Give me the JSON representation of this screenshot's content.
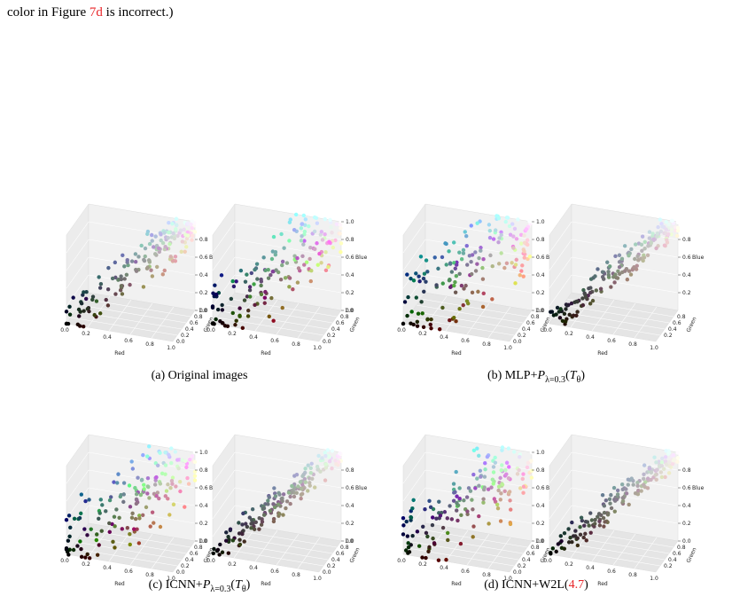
{
  "header": {
    "text": [
      {
        "text": "color in Figure "
      },
      {
        "text": "7d",
        "color": "red"
      },
      {
        "text": " is incorrect.)"
      }
    ]
  },
  "figure": {
    "panels": [
      {
        "red_ticks": [
          "0.0",
          "0.2",
          "0.4",
          "0.6",
          "0.8",
          "1.0"
        ],
        "green_ticks": [
          "0.0",
          "0.2",
          "0.4",
          "0.6",
          "0.8",
          "1.0"
        ],
        "blue_ticks": [
          "0.0",
          "0.2",
          "0.4",
          "0.6",
          "0.8"
        ],
        "x_label": "Red",
        "y_label": "Green",
        "z_label": "Blue"
      },
      {
        "red_ticks": [
          "0.0",
          "0.2",
          "0.4",
          "0.6",
          "0.8",
          "1.0"
        ],
        "green_ticks": [
          "0.0",
          "0.2",
          "0.4",
          "0.6",
          "0.8",
          "1.0"
        ],
        "blue_ticks": [
          "0.0",
          "0.2",
          "0.4",
          "0.6",
          "0.8",
          "1.0"
        ],
        "x_label": "Red",
        "y_label": "Green",
        "z_label": "Blue"
      },
      {
        "red_ticks": [
          "0.0",
          "0.2",
          "0.4",
          "0.6",
          "0.8",
          "1.0"
        ],
        "green_ticks": [
          "0.0",
          "0.2",
          "0.4",
          "0.6",
          "0.8",
          "1.0"
        ],
        "blue_ticks": [
          "0.0",
          "0.2",
          "0.4",
          "0.6",
          "0.8",
          "1.0"
        ],
        "x_label": "Red",
        "y_label": "Green",
        "z_label": "Blue"
      },
      {
        "red_ticks": [
          "0.0",
          "0.2",
          "0.4",
          "0.6",
          "0.8",
          "1.0"
        ],
        "green_ticks": [
          "0.2",
          "0.4",
          "0.6",
          "0.8"
        ],
        "blue_ticks": [
          "0.2",
          "0.4",
          "0.6",
          "0.8"
        ],
        "x_label": "Red",
        "y_label": "Green",
        "z_label": "Blue"
      },
      {
        "red_ticks": [
          "0.0",
          "0.2",
          "0.4",
          "0.6",
          "0.8",
          "1.0"
        ],
        "green_ticks": [
          "0.0",
          "0.2",
          "0.4",
          "0.6",
          "0.8",
          "1.0"
        ],
        "blue_ticks": [
          "0.0",
          "0.2",
          "0.4",
          "0.6",
          "0.8",
          "1.0"
        ],
        "x_label": "Red",
        "y_label": "Green",
        "z_label": "Blue"
      },
      {
        "red_ticks": [
          "0.0",
          "0.2",
          "0.4",
          "0.6",
          "0.8",
          "1.0"
        ],
        "green_ticks": [
          "0.0",
          "0.2",
          "0.4",
          "0.6",
          "0.8",
          "1.0"
        ],
        "blue_ticks": [
          "0.0",
          "0.2",
          "0.4",
          "0.6",
          "0.8"
        ],
        "x_label": "Red",
        "y_label": "Green",
        "z_label": "Blue"
      },
      {
        "red_ticks": [
          "0.0",
          "0.2",
          "0.4",
          "0.6",
          "0.8",
          "1.0"
        ],
        "green_ticks": [
          "0.0",
          "0.2",
          "0.4",
          "0.6",
          "0.8",
          "1.0"
        ],
        "blue_ticks": [
          "0.0",
          "0.2",
          "0.4",
          "0.6",
          "0.8",
          "1.0"
        ],
        "x_label": "Red",
        "y_label": "Green",
        "z_label": "Blue"
      },
      {
        "red_ticks": [
          "0.0",
          "0.2",
          "0.4",
          "0.6",
          "0.8",
          "1.0"
        ],
        "green_ticks": [
          "0.2",
          "0.4",
          "0.6",
          "0.8"
        ],
        "blue_ticks": [
          "0.0",
          "0.2",
          "0.4",
          "0.6",
          "0.8"
        ],
        "x_label": "Red",
        "y_label": "Green",
        "z_label": "Blue"
      }
    ],
    "captions": [
      [
        {
          "text": "(a) Original images"
        }
      ],
      [
        {
          "text": "(b) MLP+"
        },
        {
          "text": "P",
          "style": "italic"
        },
        {
          "text": "λ=0.3",
          "style": "sub"
        },
        {
          "text": "("
        },
        {
          "text": "T",
          "style": "italic"
        },
        {
          "text": "θ",
          "style": "sub"
        },
        {
          "text": ")"
        }
      ],
      [
        {
          "text": "(c) ICNN+"
        },
        {
          "text": "P",
          "style": "italic"
        },
        {
          "text": "λ=0.3",
          "style": "sub"
        },
        {
          "text": "("
        },
        {
          "text": "T",
          "style": "italic"
        },
        {
          "text": "θ",
          "style": "sub"
        },
        {
          "text": ")"
        }
      ],
      [
        {
          "text": "(d) ICNN+W2L("
        },
        {
          "text": "4.7",
          "color": "red"
        },
        {
          "text": ")"
        }
      ]
    ]
  }
}
